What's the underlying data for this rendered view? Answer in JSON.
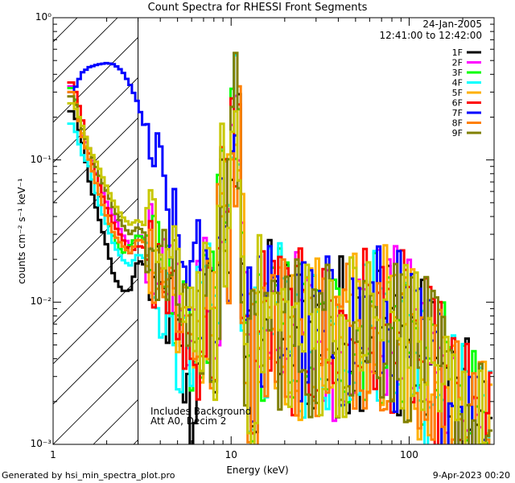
{
  "chart_data": {
    "type": "line",
    "title": "Count Spectra for RHESSI Front Segments",
    "xlabel": "Energy (keV)",
    "ylabel": "counts cm⁻² s⁻¹ keV⁻¹",
    "xscale": "log",
    "yscale": "log",
    "xlim": [
      1,
      300
    ],
    "ylim": [
      0.001,
      1
    ],
    "x_ticks": [
      1,
      10,
      100
    ],
    "x_tick_labels": [
      "1",
      "10",
      "100"
    ],
    "y_ticks": [
      0.001,
      0.01,
      0.1,
      1
    ],
    "y_tick_labels": [
      "10⁻³",
      "10⁻²",
      "10⁻¹",
      "10⁰"
    ],
    "date": "24-Jan-2005",
    "time_range": "12:41:00 to 12:42:00",
    "annotation_lines": [
      "Includes Background",
      "Att A0, Decim 2"
    ],
    "legend_position": "top-right",
    "shaded_region_kev": [
      1,
      3
    ],
    "series": [
      {
        "name": "1F",
        "color": "#000000",
        "low": [
          0.22,
          0.14,
          0.07,
          0.04,
          0.025,
          0.015,
          0.012,
          0.012,
          0.02,
          0.018,
          0.012,
          0.01,
          0.008,
          0.004,
          0.002,
          0.0011
        ]
      },
      {
        "name": "2F",
        "color": "#ff00ff",
        "low": [
          0.33,
          0.15,
          0.12,
          0.07,
          0.05,
          0.04,
          0.03,
          0.025,
          0.03,
          0.028,
          0.022,
          0.018,
          0.014,
          0.011,
          0.008,
          0.006
        ]
      },
      {
        "name": "3F",
        "color": "#00ff00",
        "low": [
          0.32,
          0.16,
          0.1,
          0.06,
          0.04,
          0.028,
          0.022,
          0.025,
          0.03,
          0.027,
          0.02,
          0.016,
          0.012,
          0.009,
          0.006,
          0.004
        ]
      },
      {
        "name": "4F",
        "color": "#00ffff",
        "low": [
          0.18,
          0.11,
          0.09,
          0.05,
          0.035,
          0.025,
          0.02,
          0.018,
          0.022,
          0.02,
          0.015,
          0.011,
          0.008,
          0.005,
          0.003,
          0.0015
        ]
      },
      {
        "name": "5F",
        "color": "#ffb000",
        "low": [
          0.3,
          0.16,
          0.1,
          0.06,
          0.04,
          0.03,
          0.025,
          0.022,
          0.028,
          0.026,
          0.02,
          0.016,
          0.012,
          0.009,
          0.006,
          0.004
        ]
      },
      {
        "name": "6F",
        "color": "#ff0000",
        "low": [
          0.35,
          0.2,
          0.11,
          0.07,
          0.045,
          0.035,
          0.028,
          0.022,
          0.025,
          0.024,
          0.018,
          0.014,
          0.01,
          0.007,
          0.005,
          0.003
        ]
      },
      {
        "name": "7F",
        "color": "#0000ff",
        "low": [
          0.3,
          0.41,
          0.45,
          0.47,
          0.48,
          0.47,
          0.42,
          0.34,
          0.25,
          0.16,
          0.1,
          0.06,
          0.035,
          0.022,
          0.016,
          0.013
        ]
      },
      {
        "name": "8F",
        "color": "#ff8000",
        "low": [
          0.3,
          0.15,
          0.1,
          0.06,
          0.04,
          0.03,
          0.025,
          0.022,
          0.028,
          0.026,
          0.021,
          0.017,
          0.013,
          0.01,
          0.007,
          0.005
        ]
      },
      {
        "name": "9F",
        "color": "#808000",
        "low": [
          0.28,
          0.17,
          0.12,
          0.08,
          0.06,
          0.045,
          0.035,
          0.03,
          0.034,
          0.03,
          0.024,
          0.018,
          0.014,
          0.011,
          0.008,
          0.006
        ]
      }
    ],
    "extra_series_color": "#c8c800"
  },
  "footer": {
    "left": "Generated by hsi_min_spectra_plot.pro",
    "right": "9-Apr-2023 00:20"
  },
  "colors": {
    "background": "#ffffff",
    "axis": "#000000",
    "hatch": "#000000"
  }
}
